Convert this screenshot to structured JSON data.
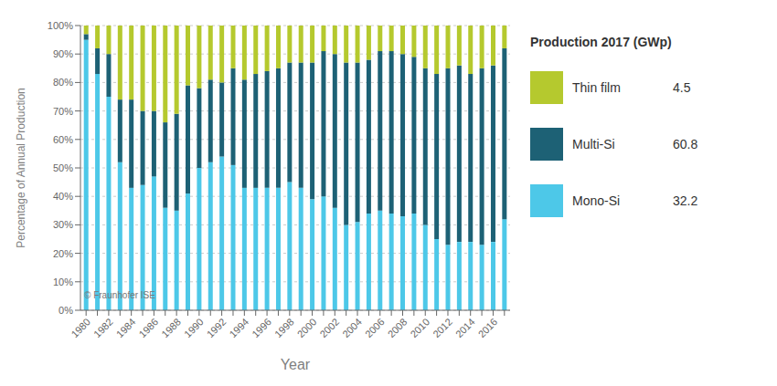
{
  "chart_data": {
    "type": "bar",
    "stacked": true,
    "categories": [
      "1980",
      null,
      "1982",
      null,
      "1984",
      null,
      "1986",
      null,
      "1988",
      null,
      "1990",
      null,
      "1992",
      null,
      "1994",
      null,
      "1996",
      null,
      "1998",
      null,
      "2000",
      null,
      "2002",
      null,
      "2004",
      null,
      "2006",
      null,
      "2008",
      null,
      "2010",
      null,
      "2012",
      null,
      "2014",
      null,
      "2016",
      null
    ],
    "series": [
      {
        "name": "Mono-Si",
        "color": "#4dc8e8",
        "production_2017": 32.2,
        "values": [
          95,
          83,
          75,
          52,
          43,
          44,
          47,
          36,
          35,
          41,
          50,
          52,
          54,
          51,
          43,
          43,
          43,
          43,
          45,
          43,
          39,
          40,
          36,
          30,
          31,
          34,
          35,
          34,
          33,
          34,
          30,
          25,
          23,
          24,
          24,
          23,
          24,
          32
        ]
      },
      {
        "name": "Multi-Si",
        "color": "#1d6175",
        "production_2017": 60.8,
        "values": [
          2,
          9,
          15,
          22,
          31,
          26,
          23,
          30,
          34,
          38,
          28,
          29,
          26,
          34,
          38,
          40,
          41,
          42,
          42,
          44,
          48,
          51,
          54,
          57,
          56,
          54,
          56,
          57,
          57,
          55,
          55,
          58,
          62,
          62,
          59,
          62,
          62,
          60
        ]
      },
      {
        "name": "Thin film",
        "color": "#b5c92e",
        "production_2017": 4.5,
        "values": [
          3,
          8,
          10,
          26,
          26,
          30,
          30,
          34,
          31,
          21,
          22,
          19,
          20,
          15,
          19,
          17,
          16,
          15,
          13,
          13,
          13,
          9,
          10,
          13,
          13,
          12,
          9,
          9,
          10,
          11,
          15,
          17,
          15,
          14,
          17,
          15,
          14,
          8
        ]
      }
    ],
    "ylim": [
      0,
      100
    ],
    "yticks": [
      {
        "value": 0,
        "label": "0%"
      },
      {
        "value": 10,
        "label": "10%"
      },
      {
        "value": 20,
        "label": "20%"
      },
      {
        "value": 30,
        "label": "30%"
      },
      {
        "value": 40,
        "label": "40%"
      },
      {
        "value": 50,
        "label": "50%"
      },
      {
        "value": 60,
        "label": "60%"
      },
      {
        "value": 70,
        "label": "70%"
      },
      {
        "value": 80,
        "label": "80%"
      },
      {
        "value": 90,
        "label": "90%"
      },
      {
        "value": 100,
        "label": "100%"
      }
    ],
    "grid": true,
    "legend": "right",
    "legend_title": "Production 2017 (GWp)",
    "xlabel": "Year",
    "ylabel": "Percentage of Annual Production",
    "annotations": [
      "© Fraunhofer ISE"
    ]
  }
}
